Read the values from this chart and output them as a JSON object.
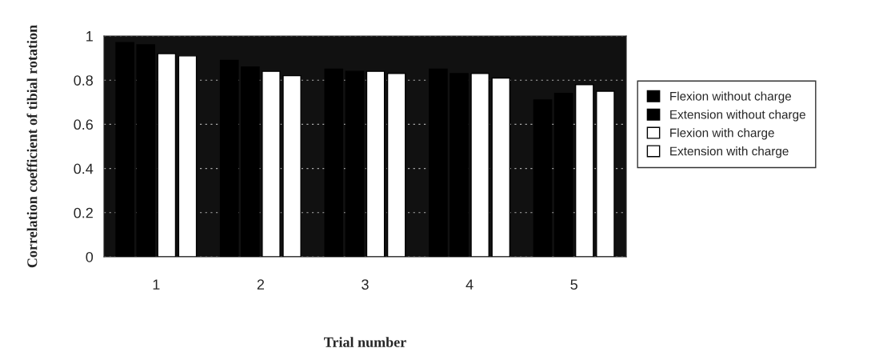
{
  "chart_data": {
    "type": "bar",
    "xlabel": "Trial number",
    "ylabel": "Correlation coefficient of tibial rotation",
    "categories": [
      "1",
      "2",
      "3",
      "4",
      "5"
    ],
    "series": [
      {
        "name": "Flexion without charge",
        "color": "#000000",
        "values": [
          0.97,
          0.89,
          0.85,
          0.85,
          0.71
        ]
      },
      {
        "name": "Extension without charge",
        "color": "#000000",
        "values": [
          0.96,
          0.86,
          0.84,
          0.83,
          0.74
        ]
      },
      {
        "name": "Flexion with charge",
        "color": "#ffffff",
        "values": [
          0.92,
          0.84,
          0.84,
          0.83,
          0.78
        ]
      },
      {
        "name": "Extension with charge",
        "color": "#ffffff",
        "values": [
          0.91,
          0.82,
          0.83,
          0.81,
          0.75
        ]
      }
    ],
    "ylim": [
      0,
      1
    ],
    "yticks": [
      0,
      0.2,
      0.4,
      0.6,
      0.8,
      1
    ],
    "grid": "y",
    "legend": "right"
  }
}
